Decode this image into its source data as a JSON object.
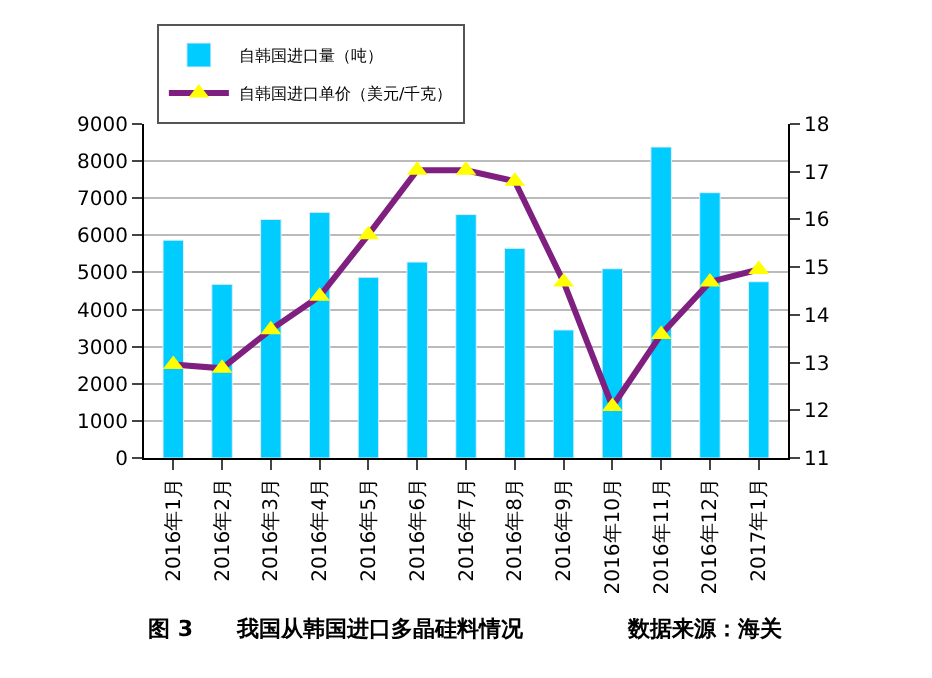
{
  "chart_data": {
    "type": "bar",
    "categories": [
      "2016年1月",
      "2016年2月",
      "2016年3月",
      "2016年4月",
      "2016年5月",
      "2016年6月",
      "2016年7月",
      "2016年8月",
      "2016年9月",
      "2016年10月",
      "2016年11月",
      "2016年12月",
      "2017年1月"
    ],
    "series": [
      {
        "name": "自韩国进口量（吨）",
        "color": "#00ccff",
        "values": [
          5870,
          4680,
          6430,
          6620,
          4870,
          5280,
          6560,
          5650,
          3450,
          5100,
          8380,
          7150,
          4750
        ]
      },
      {
        "name": "自韩国进口单价（美元/千克）",
        "type": "line",
        "axis": "y2",
        "color": "#7f1f7f",
        "marker": "triangle",
        "values": [
          12.96,
          12.88,
          13.69,
          14.39,
          15.68,
          17.03,
          17.03,
          16.8,
          14.69,
          12.08,
          13.59,
          14.69,
          14.95
        ]
      }
    ],
    "ylim": [
      0,
      9000
    ],
    "yticks": [
      0,
      1000,
      2000,
      3000,
      4000,
      5000,
      6000,
      7000,
      8000,
      9000
    ],
    "y2lim": [
      11,
      18
    ],
    "y2ticks": [
      11,
      12,
      13,
      14,
      15,
      16,
      17,
      18
    ],
    "grid": "y",
    "legend": "top left",
    "annotations": [
      "图 3　　我国从韩国进口多晶硅料情况",
      "数据来源：海关"
    ]
  }
}
